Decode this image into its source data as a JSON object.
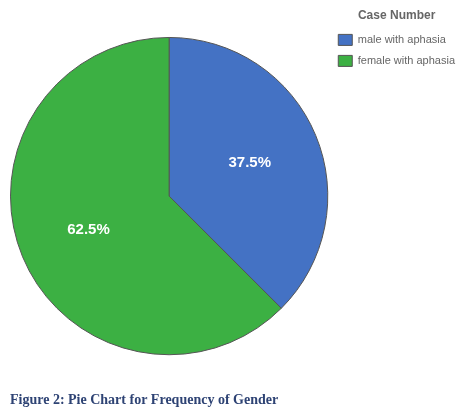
{
  "chart_data": {
    "type": "pie",
    "categories": [
      "male with aphasia",
      "female with aphasia"
    ],
    "values": [
      37.5,
      62.5
    ],
    "value_labels": [
      "37.5%",
      "62.5%"
    ],
    "colors": [
      "#4472c4",
      "#3cb043"
    ],
    "data_labels": true,
    "legend": "right",
    "legend_title": "Case Number",
    "caption": "Figure 2: Pie Chart for Frequency of Gender"
  }
}
